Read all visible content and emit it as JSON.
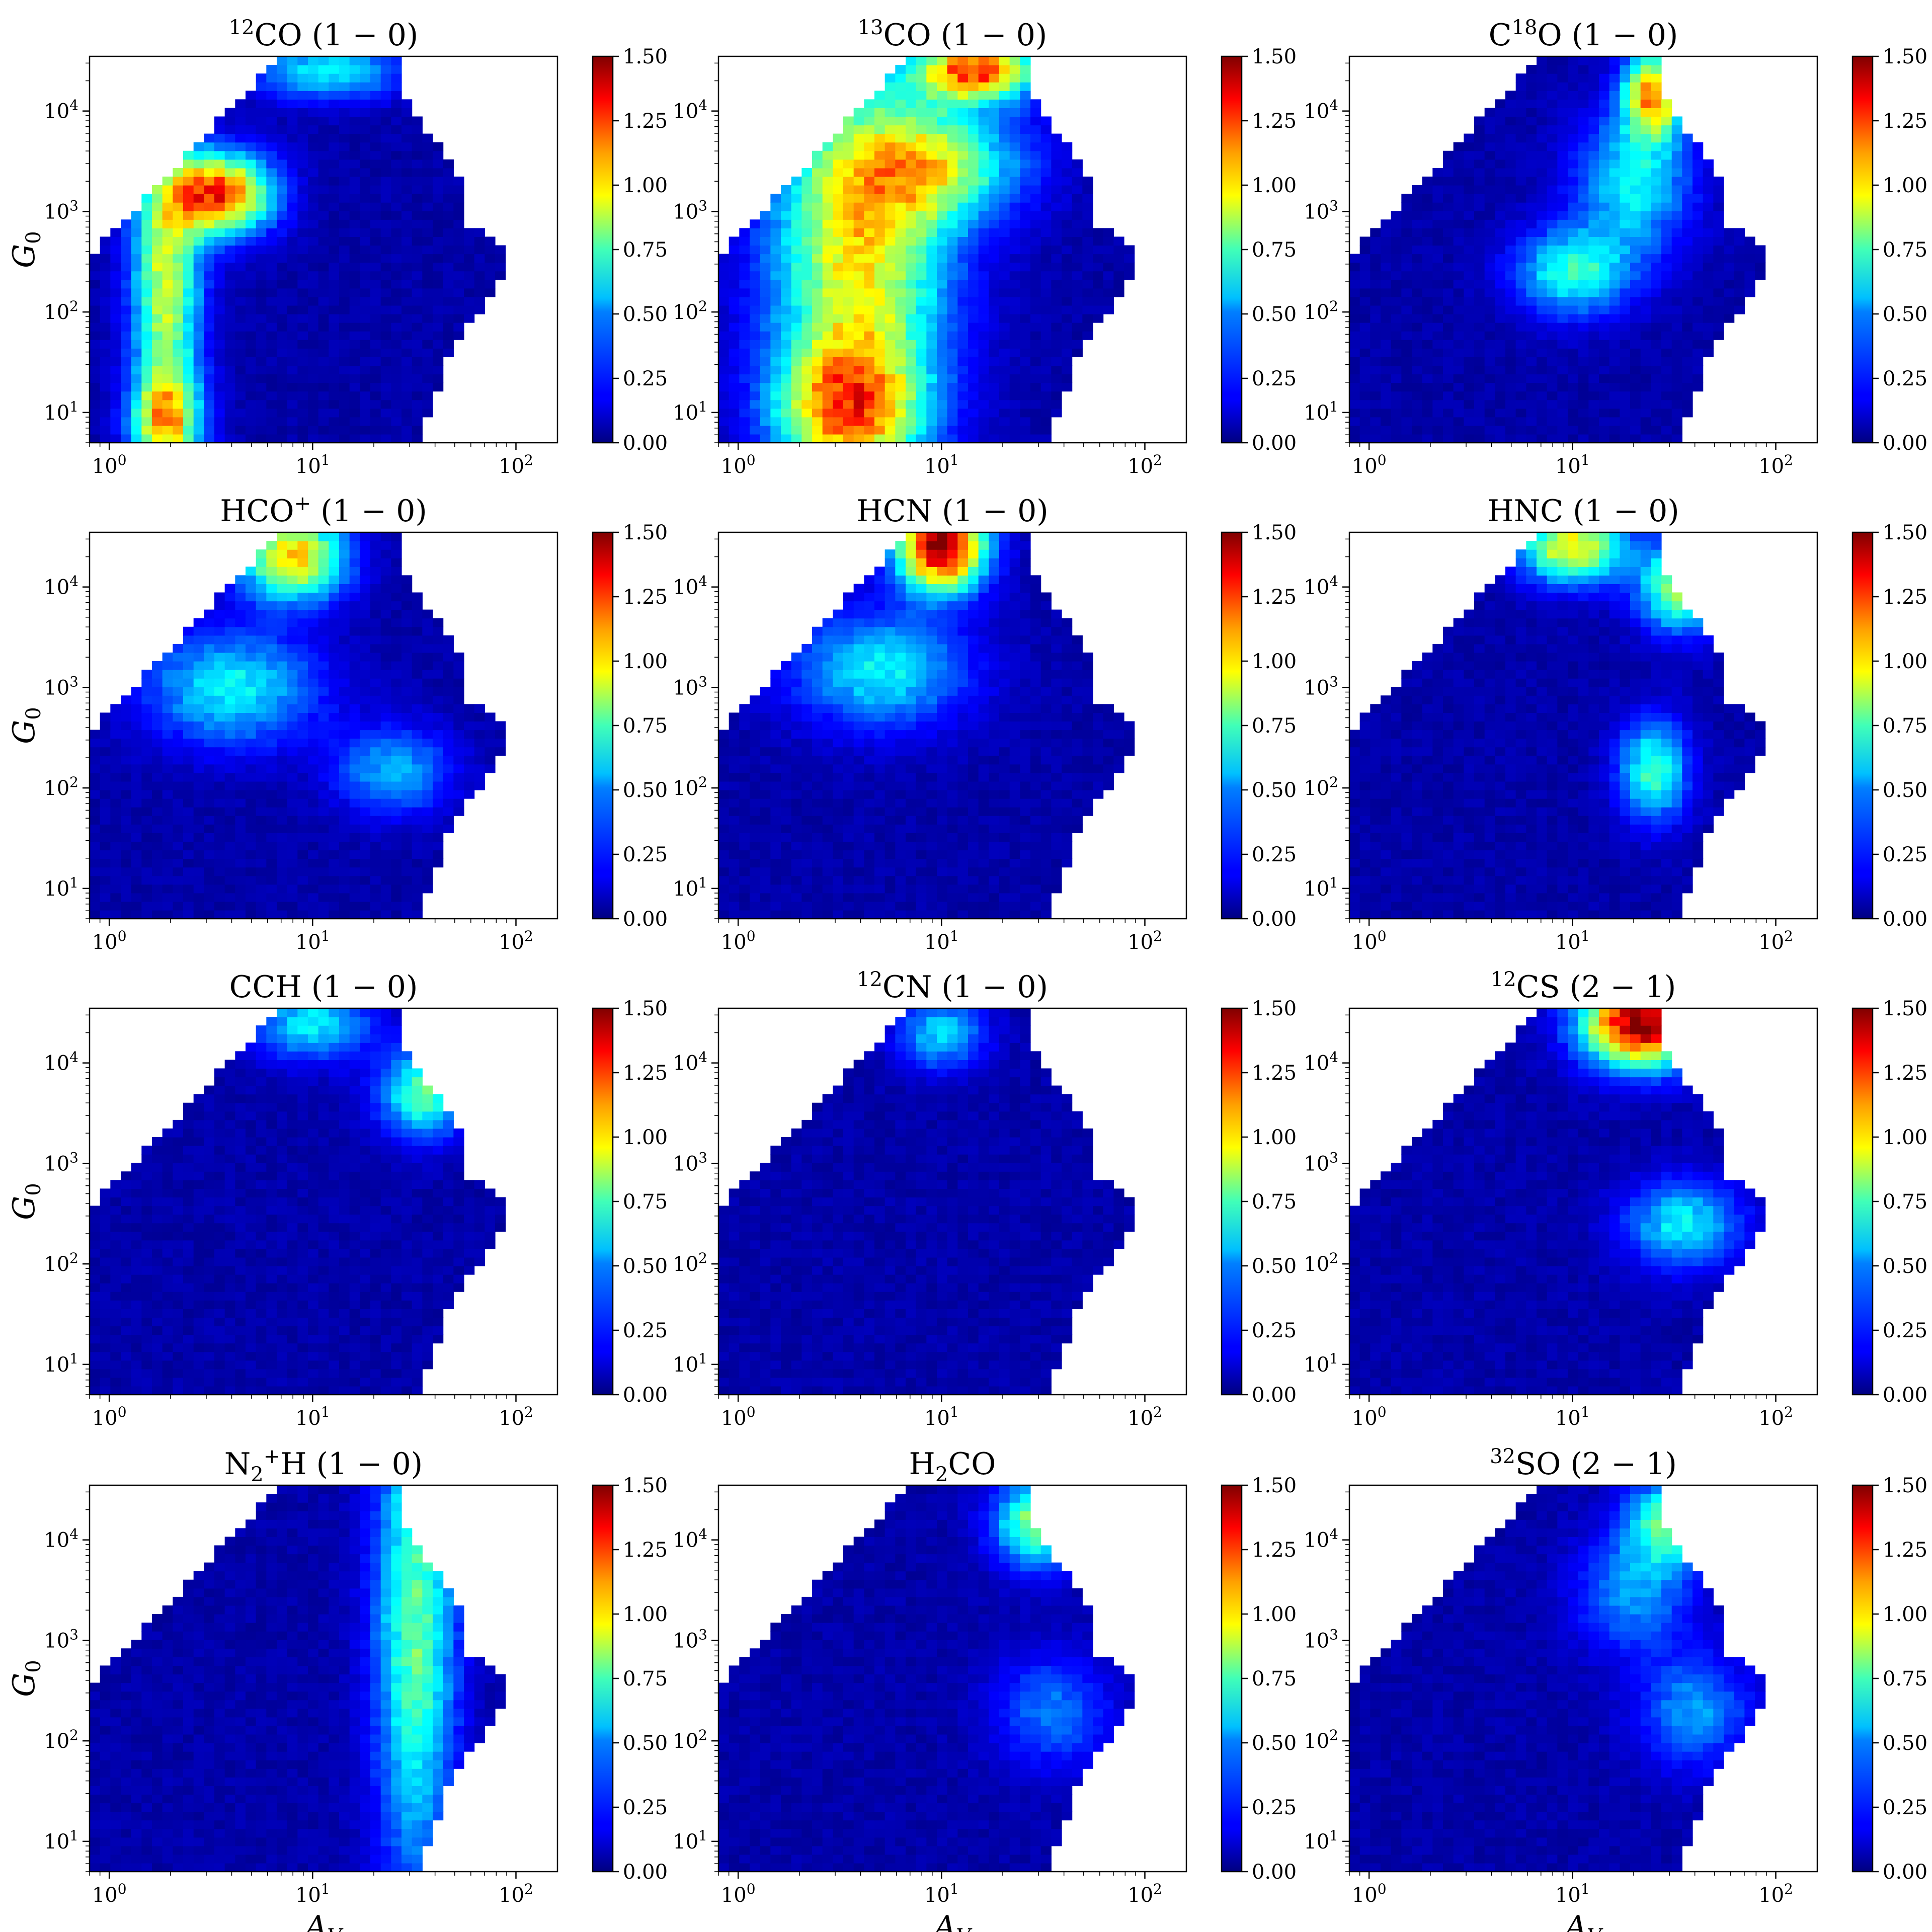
{
  "chart_data": [
    {
      "type": "heatmap",
      "title": "CO (1 − 0)",
      "title_sup": "12",
      "title_sup_pos": "pre",
      "title_sub": "",
      "x_axis_label": "A",
      "x_axis_label_sub": "V",
      "y_axis_label": "G",
      "y_axis_label_sub": "0",
      "x_scale": "log",
      "y_scale": "log",
      "xlim": [
        0.8,
        160
      ],
      "ylim": [
        5,
        35000
      ],
      "x_ticks": [
        "10^0",
        "10^1",
        "10^2"
      ],
      "y_ticks": [
        "10^1",
        "10^2",
        "10^3",
        "10^4"
      ],
      "colorbar_range": [
        0,
        1.5
      ],
      "colorbar_ticks": [
        "0.00",
        "0.25",
        "0.50",
        "0.75",
        "1.00",
        "1.25",
        "1.50"
      ],
      "colormap": "jet",
      "hotspots": [
        {
          "av": 3.5,
          "g0": 1500,
          "value": 1.2,
          "sx": 0.18,
          "sy": 0.28
        },
        {
          "av": 1.9,
          "g0": 200,
          "value": 0.8,
          "sx": 0.12,
          "sy": 0.9
        },
        {
          "av": 1.9,
          "g0": 8,
          "value": 0.85,
          "sx": 0.12,
          "sy": 0.35
        },
        {
          "av": 12,
          "g0": 25000,
          "value": 0.5,
          "sx": 0.25,
          "sy": 0.2
        }
      ]
    },
    {
      "type": "heatmap",
      "title": "CO (1 − 0)",
      "title_sup": "13",
      "title_sup_pos": "pre",
      "title_sub": "",
      "x_axis_label": "A",
      "x_axis_label_sub": "V",
      "y_axis_label": "G",
      "y_axis_label_sub": "0",
      "x_scale": "log",
      "y_scale": "log",
      "xlim": [
        0.8,
        160
      ],
      "ylim": [
        5,
        35000
      ],
      "x_ticks": [
        "10^0",
        "10^1",
        "10^2"
      ],
      "y_ticks": [
        "10^1",
        "10^2",
        "10^3",
        "10^4"
      ],
      "colorbar_range": [
        0,
        1.5
      ],
      "colorbar_ticks": [
        "0.00",
        "0.25",
        "0.50",
        "0.75",
        "1.00",
        "1.25",
        "1.50"
      ],
      "colormap": "jet",
      "hotspots": [
        {
          "av": 4,
          "g0": 500,
          "value": 0.9,
          "sx": 0.3,
          "sy": 1.2
        },
        {
          "av": 3.5,
          "g0": 10,
          "value": 0.9,
          "sx": 0.25,
          "sy": 0.5
        },
        {
          "av": 15,
          "g0": 25000,
          "value": 1.15,
          "sx": 0.2,
          "sy": 0.2
        },
        {
          "av": 10,
          "g0": 3000,
          "value": 0.6,
          "sx": 0.3,
          "sy": 0.4
        }
      ]
    },
    {
      "type": "heatmap",
      "title": "O (1 − 0)",
      "title_sup": "18",
      "title_sup_pos": "mid",
      "title_pre": "C",
      "title_sub": "",
      "x_axis_label": "A",
      "x_axis_label_sub": "V",
      "y_axis_label": "G",
      "y_axis_label_sub": "0",
      "x_scale": "log",
      "y_scale": "log",
      "xlim": [
        0.8,
        160
      ],
      "ylim": [
        5,
        35000
      ],
      "x_ticks": [
        "10^0",
        "10^1",
        "10^2"
      ],
      "y_ticks": [
        "10^1",
        "10^2",
        "10^3",
        "10^4"
      ],
      "colorbar_range": [
        0,
        1.5
      ],
      "colorbar_ticks": [
        "0.00",
        "0.25",
        "0.50",
        "0.75",
        "1.00",
        "1.25",
        "1.50"
      ],
      "colormap": "jet",
      "hotspots": [
        {
          "av": 10,
          "g0": 250,
          "value": 0.55,
          "sx": 0.2,
          "sy": 0.3
        },
        {
          "av": 25,
          "g0": 15000,
          "value": 1.0,
          "sx": 0.1,
          "sy": 0.3
        },
        {
          "av": 20,
          "g0": 2000,
          "value": 0.5,
          "sx": 0.2,
          "sy": 0.5
        }
      ]
    },
    {
      "type": "heatmap",
      "title": "HCO (1 − 0)",
      "title_sup": "+",
      "title_sup_pos": "post",
      "title_sub": "",
      "x_axis_label": "A",
      "x_axis_label_sub": "V",
      "y_axis_label": "G",
      "y_axis_label_sub": "0",
      "x_scale": "log",
      "y_scale": "log",
      "xlim": [
        0.8,
        160
      ],
      "ylim": [
        5,
        35000
      ],
      "x_ticks": [
        "10^0",
        "10^1",
        "10^2"
      ],
      "y_ticks": [
        "10^1",
        "10^2",
        "10^3",
        "10^4"
      ],
      "colorbar_range": [
        0,
        1.5
      ],
      "colorbar_ticks": [
        "0.00",
        "0.25",
        "0.50",
        "0.75",
        "1.00",
        "1.25",
        "1.50"
      ],
      "colormap": "jet",
      "hotspots": [
        {
          "av": 8,
          "g0": 20000,
          "value": 0.95,
          "sx": 0.18,
          "sy": 0.3
        },
        {
          "av": 4,
          "g0": 1000,
          "value": 0.5,
          "sx": 0.3,
          "sy": 0.4
        },
        {
          "av": 25,
          "g0": 150,
          "value": 0.4,
          "sx": 0.2,
          "sy": 0.3
        }
      ]
    },
    {
      "type": "heatmap",
      "title": "HCN (1 − 0)",
      "title_sup": "",
      "title_sup_pos": "none",
      "title_sub": "",
      "x_axis_label": "A",
      "x_axis_label_sub": "V",
      "y_axis_label": "G",
      "y_axis_label_sub": "0",
      "x_scale": "log",
      "y_scale": "log",
      "xlim": [
        0.8,
        160
      ],
      "ylim": [
        5,
        35000
      ],
      "x_ticks": [
        "10^0",
        "10^1",
        "10^2"
      ],
      "y_ticks": [
        "10^1",
        "10^2",
        "10^3",
        "10^4"
      ],
      "colorbar_range": [
        0,
        1.5
      ],
      "colorbar_ticks": [
        "0.00",
        "0.25",
        "0.50",
        "0.75",
        "1.00",
        "1.25",
        "1.50"
      ],
      "colormap": "jet",
      "hotspots": [
        {
          "av": 10,
          "g0": 25000,
          "value": 1.45,
          "sx": 0.15,
          "sy": 0.3
        },
        {
          "av": 5,
          "g0": 1500,
          "value": 0.5,
          "sx": 0.3,
          "sy": 0.4
        }
      ]
    },
    {
      "type": "heatmap",
      "title": "HNC (1 − 0)",
      "title_sup": "",
      "title_sup_pos": "none",
      "title_sub": "",
      "x_axis_label": "A",
      "x_axis_label_sub": "V",
      "y_axis_label": "G",
      "y_axis_label_sub": "0",
      "x_scale": "log",
      "y_scale": "log",
      "xlim": [
        0.8,
        160
      ],
      "ylim": [
        5,
        35000
      ],
      "x_ticks": [
        "10^0",
        "10^1",
        "10^2"
      ],
      "y_ticks": [
        "10^1",
        "10^2",
        "10^3",
        "10^4"
      ],
      "colorbar_range": [
        0,
        1.5
      ],
      "colorbar_ticks": [
        "0.00",
        "0.25",
        "0.50",
        "0.75",
        "1.00",
        "1.25",
        "1.50"
      ],
      "colormap": "jet",
      "hotspots": [
        {
          "av": 10,
          "g0": 25000,
          "value": 0.9,
          "sx": 0.18,
          "sy": 0.25
        },
        {
          "av": 25,
          "g0": 150,
          "value": 0.6,
          "sx": 0.12,
          "sy": 0.35
        },
        {
          "av": 35,
          "g0": 10000,
          "value": 0.8,
          "sx": 0.15,
          "sy": 0.3
        }
      ]
    },
    {
      "type": "heatmap",
      "title": "CCH (1 − 0)",
      "title_sup": "",
      "title_sup_pos": "none",
      "title_sub": "",
      "x_axis_label": "A",
      "x_axis_label_sub": "V",
      "y_axis_label": "G",
      "y_axis_label_sub": "0",
      "x_scale": "log",
      "y_scale": "log",
      "xlim": [
        0.8,
        160
      ],
      "ylim": [
        5,
        35000
      ],
      "x_ticks": [
        "10^0",
        "10^1",
        "10^2"
      ],
      "y_ticks": [
        "10^1",
        "10^2",
        "10^3",
        "10^4"
      ],
      "colorbar_range": [
        0,
        1.5
      ],
      "colorbar_ticks": [
        "0.00",
        "0.25",
        "0.50",
        "0.75",
        "1.00",
        "1.25",
        "1.50"
      ],
      "colormap": "jet",
      "hotspots": [
        {
          "av": 10,
          "g0": 25000,
          "value": 0.5,
          "sx": 0.2,
          "sy": 0.25
        },
        {
          "av": 35,
          "g0": 5000,
          "value": 0.65,
          "sx": 0.15,
          "sy": 0.3
        }
      ]
    },
    {
      "type": "heatmap",
      "title": "CN (1 − 0)",
      "title_sup": "12",
      "title_sup_pos": "pre",
      "title_sub": "",
      "x_axis_label": "A",
      "x_axis_label_sub": "V",
      "y_axis_label": "G",
      "y_axis_label_sub": "0",
      "x_scale": "log",
      "y_scale": "log",
      "xlim": [
        0.8,
        160
      ],
      "ylim": [
        5,
        35000
      ],
      "x_ticks": [
        "10^0",
        "10^1",
        "10^2"
      ],
      "y_ticks": [
        "10^1",
        "10^2",
        "10^3",
        "10^4"
      ],
      "colorbar_range": [
        0,
        1.5
      ],
      "colorbar_ticks": [
        "0.00",
        "0.25",
        "0.50",
        "0.75",
        "1.00",
        "1.25",
        "1.50"
      ],
      "colormap": "jet",
      "hotspots": [
        {
          "av": 10,
          "g0": 20000,
          "value": 0.45,
          "sx": 0.15,
          "sy": 0.25
        }
      ]
    },
    {
      "type": "heatmap",
      "title": "CS (2 − 1)",
      "title_sup": "12",
      "title_sup_pos": "pre",
      "title_sub": "",
      "x_axis_label": "A",
      "x_axis_label_sub": "V",
      "y_axis_label": "G",
      "y_axis_label_sub": "0",
      "x_scale": "log",
      "y_scale": "log",
      "xlim": [
        0.8,
        160
      ],
      "ylim": [
        5,
        35000
      ],
      "x_ticks": [
        "10^0",
        "10^1",
        "10^2"
      ],
      "y_ticks": [
        "10^1",
        "10^2",
        "10^3",
        "10^4"
      ],
      "colorbar_range": [
        0,
        1.5
      ],
      "colorbar_ticks": [
        "0.00",
        "0.25",
        "0.50",
        "0.75",
        "1.00",
        "1.25",
        "1.50"
      ],
      "colormap": "jet",
      "hotspots": [
        {
          "av": 22,
          "g0": 25000,
          "value": 1.45,
          "sx": 0.2,
          "sy": 0.3
        },
        {
          "av": 35,
          "g0": 250,
          "value": 0.5,
          "sx": 0.2,
          "sy": 0.3
        }
      ]
    },
    {
      "type": "heatmap",
      "title": "H (1 − 0)",
      "title_pre": "N",
      "title_sub": "2",
      "title_sup": "+",
      "title_sup_pos": "post",
      "x_axis_label": "A",
      "x_axis_label_sub": "V",
      "y_axis_label": "G",
      "y_axis_label_sub": "0",
      "x_scale": "log",
      "y_scale": "log",
      "xlim": [
        0.8,
        160
      ],
      "ylim": [
        5,
        35000
      ],
      "x_ticks": [
        "10^0",
        "10^1",
        "10^2"
      ],
      "y_ticks": [
        "10^1",
        "10^2",
        "10^3",
        "10^4"
      ],
      "colorbar_range": [
        0,
        1.5
      ],
      "colorbar_ticks": [
        "0.00",
        "0.25",
        "0.50",
        "0.75",
        "1.00",
        "1.25",
        "1.50"
      ],
      "colormap": "jet",
      "hotspots": [
        {
          "av": 32,
          "g0": 1500,
          "value": 0.65,
          "sx": 0.14,
          "sy": 1.8
        }
      ]
    },
    {
      "type": "heatmap",
      "title": "CO",
      "title_pre": "H",
      "title_sub": "2",
      "title_sup": "",
      "title_sup_pos": "none",
      "x_axis_label": "A",
      "x_axis_label_sub": "V",
      "y_axis_label": "G",
      "y_axis_label_sub": "0",
      "x_scale": "log",
      "y_scale": "log",
      "xlim": [
        0.8,
        160
      ],
      "ylim": [
        5,
        35000
      ],
      "x_ticks": [
        "10^0",
        "10^1",
        "10^2"
      ],
      "y_ticks": [
        "10^1",
        "10^2",
        "10^3",
        "10^4"
      ],
      "colorbar_range": [
        0,
        1.5
      ],
      "colorbar_ticks": [
        "0.00",
        "0.25",
        "0.50",
        "0.75",
        "1.00",
        "1.25",
        "1.50"
      ],
      "colormap": "jet",
      "hotspots": [
        {
          "av": 30,
          "g0": 15000,
          "value": 0.75,
          "sx": 0.15,
          "sy": 0.3
        },
        {
          "av": 35,
          "g0": 200,
          "value": 0.3,
          "sx": 0.2,
          "sy": 0.4
        }
      ]
    },
    {
      "type": "heatmap",
      "title": "SO (2 − 1)",
      "title_sup": "32",
      "title_sup_pos": "pre",
      "title_sub": "",
      "x_axis_label": "A",
      "x_axis_label_sub": "V",
      "y_axis_label": "G",
      "y_axis_label_sub": "0",
      "x_scale": "log",
      "y_scale": "log",
      "xlim": [
        0.8,
        160
      ],
      "ylim": [
        5,
        35000
      ],
      "x_ticks": [
        "10^0",
        "10^1",
        "10^2"
      ],
      "y_ticks": [
        "10^1",
        "10^2",
        "10^3",
        "10^4"
      ],
      "colorbar_range": [
        0,
        1.5
      ],
      "colorbar_ticks": [
        "0.00",
        "0.25",
        "0.50",
        "0.75",
        "1.00",
        "1.25",
        "1.50"
      ],
      "colormap": "jet",
      "hotspots": [
        {
          "av": 30,
          "g0": 15000,
          "value": 0.65,
          "sx": 0.15,
          "sy": 0.3
        },
        {
          "av": 20,
          "g0": 3000,
          "value": 0.35,
          "sx": 0.2,
          "sy": 0.4
        },
        {
          "av": 40,
          "g0": 200,
          "value": 0.35,
          "sx": 0.2,
          "sy": 0.4
        }
      ]
    }
  ]
}
